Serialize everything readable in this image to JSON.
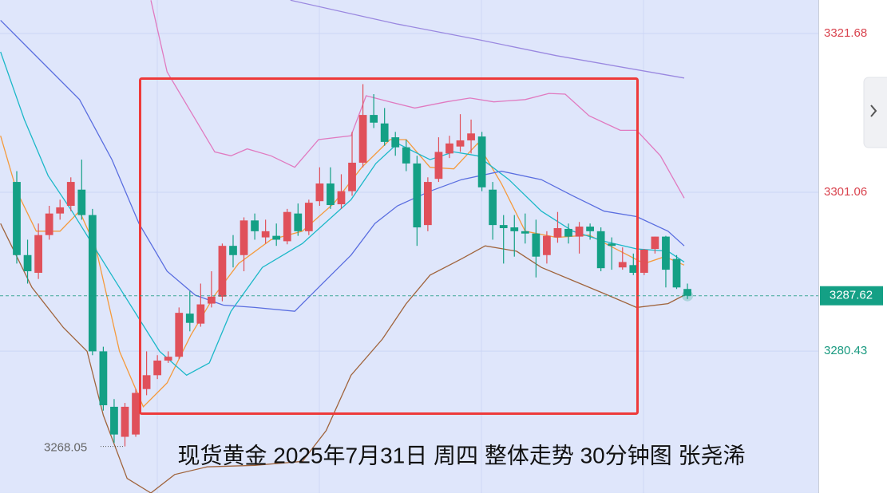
{
  "chart_data": {
    "type": "candlestick",
    "title": "现货黄金 2025年7月31日 周四 整体走势 30分钟图 张尧浠",
    "xlim": [
      -1.55,
      74.1
    ],
    "ylim": [
      3262.0,
      3326.03
    ],
    "yticks": [
      3321.68,
      3301.06,
      3280.43
    ],
    "ytick_colors": [
      "#d9434e",
      "#d9434e",
      "#1a9a80"
    ],
    "grid": true,
    "up_color": "#e0505a",
    "down_color": "#14a085",
    "current_price": 3287.62,
    "low_label": 3268.05,
    "open": [
      3302.4,
      3292.9,
      3290.6,
      3295.5,
      3298.3,
      3299.3,
      3301.4,
      3298.1,
      3280.4,
      3273.2,
      3269.3,
      3269.6,
      3275.5,
      3277.3,
      3279.2,
      3279.7,
      3285.3,
      3284.0,
      3286.6,
      3287.5,
      3294.1,
      3292.9,
      3297.4,
      3295.2,
      3295.4,
      3294.7,
      3298.3,
      3296.0,
      3299.9,
      3302.2,
      3299.5,
      3301.2,
      3304.9,
      3311.1,
      3310.0,
      3308.2,
      3306.9,
      3304.8,
      3296.8,
      3302.8,
      3306.1,
      3307.0,
      3307.8,
      3308.3,
      3301.4,
      3296.8,
      3296.5,
      3296.0,
      3295.7,
      3292.9,
      3295.2,
      3296.3,
      3295.3,
      3296.6,
      3296.0,
      3294.4,
      3291.3,
      3291.6,
      3290.6,
      3293.7,
      3295.3,
      3292.4,
      3288.5
    ],
    "close": [
      3292.9,
      3290.8,
      3295.5,
      3298.3,
      3299.1,
      3302.4,
      3298.1,
      3280.4,
      3273.4,
      3269.6,
      3273.2,
      3275.0,
      3277.3,
      3279.2,
      3279.7,
      3285.4,
      3284.1,
      3286.5,
      3287.5,
      3294.1,
      3292.9,
      3297.4,
      3296.0,
      3296.0,
      3294.9,
      3298.5,
      3296.0,
      3299.7,
      3302.2,
      3299.4,
      3301.2,
      3304.9,
      3311.1,
      3310.1,
      3307.6,
      3306.9,
      3304.8,
      3296.5,
      3302.4,
      3306.3,
      3307.4,
      3307.8,
      3308.7,
      3301.7,
      3296.8,
      3296.4,
      3296.0,
      3295.7,
      3292.7,
      3295.4,
      3296.4,
      3295.3,
      3296.6,
      3296.0,
      3291.2,
      3294.1,
      3292.0,
      3290.6,
      3293.6,
      3295.3,
      3291.0,
      3288.7,
      3287.62
    ],
    "high": [
      3303.8,
      3294.9,
      3297.0,
      3299.3,
      3300.1,
      3303.0,
      3305.3,
      3298.9,
      3281.0,
      3274.2,
      3273.7,
      3275.5,
      3280.4,
      3279.9,
      3280.4,
      3286.1,
      3288.2,
      3289.2,
      3290.8,
      3294.4,
      3295.5,
      3297.8,
      3298.3,
      3297.5,
      3297.0,
      3298.9,
      3299.6,
      3300.1,
      3304.3,
      3304.3,
      3303.4,
      3308.9,
      3315.1,
      3313.8,
      3312.0,
      3308.9,
      3307.9,
      3305.8,
      3303.0,
      3308.2,
      3308.4,
      3311.2,
      3310.5,
      3308.9,
      3302.4,
      3298.1,
      3298.1,
      3298.3,
      3297.5,
      3296.0,
      3298.5,
      3297.0,
      3297.2,
      3297.0,
      3296.5,
      3295.2,
      3293.9,
      3293.1,
      3293.7,
      3295.3,
      3295.4,
      3292.9,
      3289.2
    ],
    "low": [
      3291.8,
      3289.2,
      3289.8,
      3294.9,
      3297.5,
      3298.6,
      3297.5,
      3279.9,
      3272.7,
      3268.5,
      3268.05,
      3269.3,
      3274.7,
      3276.8,
      3278.9,
      3279.4,
      3283.0,
      3283.6,
      3286.1,
      3286.9,
      3291.3,
      3290.8,
      3294.9,
      3294.4,
      3294.1,
      3294.3,
      3295.4,
      3295.5,
      3299.3,
      3298.9,
      3298.9,
      3300.6,
      3304.3,
      3309.4,
      3307.1,
      3305.8,
      3303.8,
      3294.1,
      3296.0,
      3302.4,
      3305.5,
      3306.3,
      3306.1,
      3301.2,
      3294.9,
      3291.8,
      3292.7,
      3294.4,
      3290.0,
      3291.8,
      3294.5,
      3294.4,
      3293.1,
      3294.9,
      3290.8,
      3291.0,
      3291.0,
      3290.3,
      3290.3,
      3293.1,
      3288.7,
      3288.5,
      3287.2
    ],
    "lines": [
      {
        "color": "#f59a3c",
        "x": [
          -1.5,
          0,
          1.8,
          4,
          5.8,
          7.3,
          9.5,
          11.7,
          13.9,
          16.1,
          18.3,
          20.5,
          23.5,
          26.4,
          29.3,
          31.9,
          34.5,
          36,
          38.2,
          40.4,
          42.6,
          44.8,
          47,
          49.9,
          52.9,
          55.8,
          58,
          59.9,
          61.7
        ],
        "values": [
          3308.4,
          3301.2,
          3296.0,
          3296.0,
          3298.6,
          3293.9,
          3280.4,
          3273.2,
          3276.3,
          3282.5,
          3287.7,
          3291.8,
          3294.9,
          3296.0,
          3299.6,
          3304.3,
          3307.9,
          3307.9,
          3304.3,
          3304.1,
          3307.4,
          3302.2,
          3296.0,
          3295.2,
          3295.5,
          3293.4,
          3291.8,
          3292.7,
          3291.6
        ]
      },
      {
        "color": "#1cb8c8",
        "x": [
          -1.5,
          0.7,
          2.9,
          5.1,
          9,
          13.2,
          15.7,
          17.8,
          19.8,
          22.7,
          26.4,
          30.9,
          33.2,
          35.2,
          38.2,
          40.4,
          42.6,
          45.5,
          48.5,
          51.4,
          54.3,
          57.3,
          60.2,
          61.7
        ],
        "values": [
          3319.3,
          3310.5,
          3303.2,
          3298.6,
          3289.8,
          3280.4,
          3277.3,
          3278.9,
          3285.6,
          3291.3,
          3294.4,
          3300.1,
          3304.8,
          3307.4,
          3305.3,
          3306.3,
          3305.8,
          3302.7,
          3298.6,
          3296.0,
          3294.7,
          3293.7,
          3293.4,
          3292.0
        ]
      },
      {
        "color": "#5a6ee0",
        "x": [
          -1.5,
          1.4,
          5.8,
          8.8,
          11.3,
          13.9,
          16.5,
          19.1,
          22,
          25.7,
          27.9,
          30.9,
          33.1,
          35.2,
          38.2,
          41.1,
          44.8,
          48.5,
          51.4,
          54.3,
          57.3,
          60.2,
          61.7
        ],
        "values": [
          3323.4,
          3319.3,
          3313.1,
          3305.3,
          3297.0,
          3290.8,
          3287.7,
          3286.4,
          3286.1,
          3285.6,
          3288.7,
          3292.9,
          3297.0,
          3299.3,
          3301.2,
          3302.7,
          3303.8,
          3302.7,
          3300.6,
          3298.6,
          3297.9,
          3296.0,
          3294.1
        ]
      },
      {
        "color": "#e07ac0",
        "x": [
          12.4,
          13.9,
          16.1,
          18.3,
          19.8,
          21.3,
          23.5,
          25.7,
          27.9,
          30.9,
          32.3,
          34.5,
          36.8,
          39.7,
          41.9,
          44.1,
          47,
          49.2,
          50.7,
          52.9,
          55.8,
          57.3,
          59.5,
          61.7
        ],
        "values": [
          3326.0,
          3316.7,
          3311.5,
          3306.3,
          3305.8,
          3306.7,
          3305.8,
          3304.3,
          3307.9,
          3308.4,
          3313.6,
          3312.8,
          3312.0,
          3312.8,
          3313.3,
          3312.8,
          3313.1,
          3313.9,
          3313.8,
          3311.0,
          3309.1,
          3309.1,
          3305.8,
          3300.3
        ]
      },
      {
        "color": "#a0643c",
        "x": [
          -1.5,
          1.4,
          4.3,
          6.5,
          8,
          10.2,
          12.4,
          14.6,
          17.6,
          22,
          26.4,
          28.6,
          30.9,
          33.8,
          36,
          38.2,
          41.1,
          43.3,
          46.2,
          48.5,
          51.4,
          54.3,
          57.3,
          60.2,
          61.7
        ],
        "values": [
          3297.0,
          3288.7,
          3283.5,
          3280.4,
          3272.1,
          3263.9,
          3262.0,
          3264.4,
          3265.4,
          3265.6,
          3266.1,
          3270.1,
          3277.3,
          3282.0,
          3286.6,
          3290.3,
          3292.4,
          3294.1,
          3293.4,
          3291.3,
          3289.6,
          3287.9,
          3286.1,
          3286.6,
          3287.7
        ]
      },
      {
        "color": "#9a88e0",
        "x": [
          25.3,
          35.2,
          42.6,
          49.9,
          61.7
        ],
        "values": [
          3326.0,
          3322.9,
          3320.9,
          3318.8,
          3315.9
        ]
      }
    ]
  }
}
